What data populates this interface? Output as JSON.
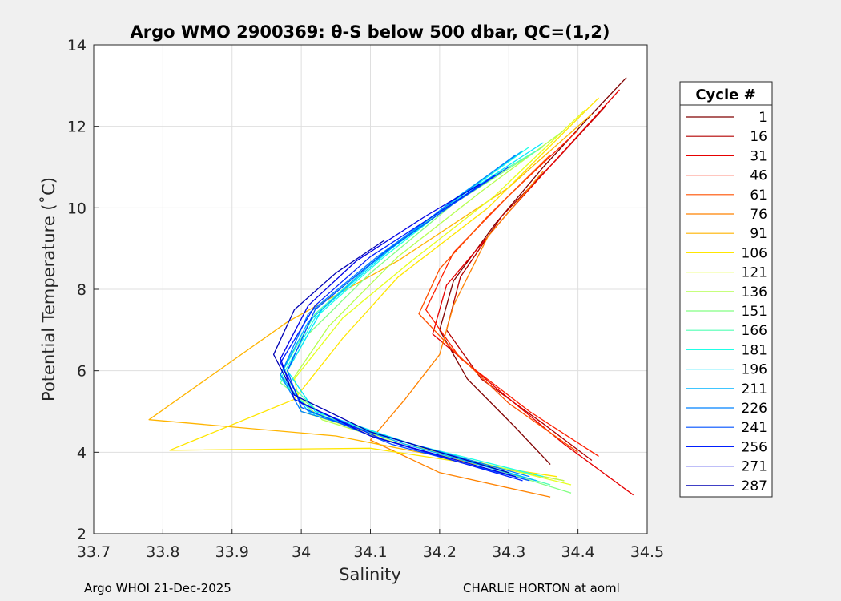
{
  "chart_data": {
    "type": "line",
    "title": "Argo WMO 2900369: θ-S below 500 dbar,  QC=(1,2)",
    "xlabel": "Salinity",
    "ylabel": "Potential Temperature (˚C)",
    "xlim": [
      33.7,
      34.5
    ],
    "ylim": [
      2,
      14
    ],
    "xticks": [
      33.7,
      33.8,
      33.9,
      34,
      34.1,
      34.2,
      34.3,
      34.4,
      34.5
    ],
    "xtick_labels": [
      "33.7",
      "33.8",
      "33.9",
      "34",
      "34.1",
      "34.2",
      "34.3",
      "34.4",
      "34.5"
    ],
    "yticks": [
      2,
      4,
      6,
      8,
      10,
      12,
      14
    ],
    "ytick_labels": [
      "2",
      "4",
      "6",
      "8",
      "10",
      "12",
      "14"
    ],
    "grid": true,
    "legend": {
      "title": "Cycle #",
      "placement": "right-outside",
      "entries": [
        {
          "label": "1",
          "color": "#800000"
        },
        {
          "label": "16",
          "color": "#b40000"
        },
        {
          "label": "31",
          "color": "#e60000"
        },
        {
          "label": "46",
          "color": "#ff1e00"
        },
        {
          "label": "61",
          "color": "#ff5000"
        },
        {
          "label": "76",
          "color": "#ff8200"
        },
        {
          "label": "91",
          "color": "#ffb400"
        },
        {
          "label": "106",
          "color": "#ffe600"
        },
        {
          "label": "121",
          "color": "#e6ff1e"
        },
        {
          "label": "136",
          "color": "#b4ff50"
        },
        {
          "label": "151",
          "color": "#82ff82"
        },
        {
          "label": "166",
          "color": "#50ffb4"
        },
        {
          "label": "181",
          "color": "#1effe6"
        },
        {
          "label": "196",
          "color": "#00e6ff"
        },
        {
          "label": "211",
          "color": "#00b4ff"
        },
        {
          "label": "226",
          "color": "#0082ff"
        },
        {
          "label": "241",
          "color": "#0050ff"
        },
        {
          "label": "256",
          "color": "#001eff"
        },
        {
          "label": "271",
          "color": "#0000e6"
        },
        {
          "label": "287",
          "color": "#0000b4"
        }
      ]
    },
    "series": [
      {
        "name": "1",
        "color": "#800000",
        "points": [
          [
            34.36,
            3.7
          ],
          [
            34.31,
            4.6
          ],
          [
            34.24,
            5.8
          ],
          [
            34.2,
            7.0
          ],
          [
            34.22,
            8.2
          ],
          [
            34.28,
            9.6
          ],
          [
            34.35,
            11.0
          ],
          [
            34.42,
            12.3
          ],
          [
            34.47,
            13.2
          ]
        ]
      },
      {
        "name": "16",
        "color": "#b40000",
        "points": [
          [
            34.42,
            3.8
          ],
          [
            34.35,
            4.7
          ],
          [
            34.26,
            5.8
          ],
          [
            34.21,
            7.0
          ],
          [
            34.23,
            8.3
          ],
          [
            34.29,
            9.8
          ],
          [
            34.37,
            11.2
          ],
          [
            34.44,
            12.5
          ]
        ]
      },
      {
        "name": "31",
        "color": "#e60000",
        "points": [
          [
            34.48,
            2.95
          ],
          [
            34.38,
            4.2
          ],
          [
            34.28,
            5.6
          ],
          [
            34.19,
            6.9
          ],
          [
            34.21,
            8.1
          ],
          [
            34.3,
            9.9
          ],
          [
            34.38,
            11.4
          ],
          [
            34.46,
            12.9
          ]
        ]
      },
      {
        "name": "46",
        "color": "#ff1e00",
        "points": [
          [
            34.43,
            3.9
          ],
          [
            34.33,
            5.0
          ],
          [
            34.23,
            6.3
          ],
          [
            34.18,
            7.5
          ],
          [
            34.22,
            8.9
          ],
          [
            34.3,
            10.3
          ],
          [
            34.4,
            11.9
          ]
        ]
      },
      {
        "name": "61",
        "color": "#ff5000",
        "points": [
          [
            34.4,
            4.0
          ],
          [
            34.3,
            5.2
          ],
          [
            34.22,
            6.5
          ],
          [
            34.17,
            7.4
          ],
          [
            34.2,
            8.5
          ],
          [
            34.27,
            9.8
          ],
          [
            34.36,
            11.3
          ]
        ]
      },
      {
        "name": "76",
        "color": "#ff8200",
        "points": [
          [
            34.36,
            2.9
          ],
          [
            34.2,
            3.5
          ],
          [
            34.1,
            4.3
          ],
          [
            34.15,
            5.3
          ],
          [
            34.2,
            6.4
          ],
          [
            34.22,
            7.6
          ],
          [
            34.27,
            9.3
          ],
          [
            34.35,
            10.9
          ]
        ]
      },
      {
        "name": "91",
        "color": "#ffb400",
        "points": [
          [
            34.38,
            3.3
          ],
          [
            34.2,
            3.9
          ],
          [
            34.05,
            4.4
          ],
          [
            33.78,
            4.8
          ],
          [
            33.98,
            7.2
          ],
          [
            34.14,
            8.7
          ],
          [
            34.3,
            10.5
          ],
          [
            34.42,
            12.3
          ]
        ]
      },
      {
        "name": "106",
        "color": "#ffe600",
        "points": [
          [
            34.37,
            3.4
          ],
          [
            34.1,
            4.1
          ],
          [
            33.81,
            4.05
          ],
          [
            33.99,
            5.3
          ],
          [
            34.06,
            6.8
          ],
          [
            34.14,
            8.3
          ],
          [
            34.27,
            10.0
          ],
          [
            34.43,
            12.7
          ]
        ]
      },
      {
        "name": "121",
        "color": "#e6ff1e",
        "points": [
          [
            34.39,
            3.2
          ],
          [
            34.15,
            4.2
          ],
          [
            34.0,
            5.0
          ],
          [
            33.99,
            5.8
          ],
          [
            34.06,
            7.3
          ],
          [
            34.16,
            8.7
          ],
          [
            34.28,
            10.3
          ],
          [
            34.41,
            12.4
          ]
        ]
      },
      {
        "name": "136",
        "color": "#b4ff50",
        "points": [
          [
            34.38,
            3.3
          ],
          [
            34.18,
            4.0
          ],
          [
            34.03,
            4.8
          ],
          [
            33.98,
            5.6
          ],
          [
            34.04,
            7.1
          ],
          [
            34.14,
            8.8
          ],
          [
            34.26,
            10.4
          ],
          [
            34.38,
            11.9
          ]
        ]
      },
      {
        "name": "151",
        "color": "#82ff82",
        "points": [
          [
            34.39,
            3.0
          ],
          [
            34.2,
            4.0
          ],
          [
            34.04,
            4.8
          ],
          [
            33.97,
            5.7
          ],
          [
            34.01,
            6.9
          ],
          [
            34.1,
            8.4
          ],
          [
            34.22,
            10.1
          ],
          [
            34.35,
            11.5
          ]
        ]
      },
      {
        "name": "166",
        "color": "#50ffb4",
        "points": [
          [
            34.36,
            3.2
          ],
          [
            34.18,
            4.1
          ],
          [
            34.03,
            4.9
          ],
          [
            33.97,
            5.9
          ],
          [
            34.02,
            7.4
          ],
          [
            34.12,
            8.9
          ],
          [
            34.24,
            10.4
          ],
          [
            34.34,
            11.4
          ]
        ]
      },
      {
        "name": "181",
        "color": "#1effe6",
        "points": [
          [
            34.35,
            3.4
          ],
          [
            34.16,
            4.2
          ],
          [
            34.02,
            4.9
          ],
          [
            33.97,
            5.8
          ],
          [
            34.02,
            7.3
          ],
          [
            34.12,
            8.8
          ],
          [
            34.24,
            10.4
          ],
          [
            34.33,
            11.5
          ]
        ]
      },
      {
        "name": "196",
        "color": "#00e6ff",
        "points": [
          [
            34.34,
            3.3
          ],
          [
            34.16,
            4.2
          ],
          [
            34.02,
            5.0
          ],
          [
            33.98,
            6.0
          ],
          [
            34.03,
            7.5
          ],
          [
            34.13,
            9.0
          ],
          [
            34.26,
            10.6
          ],
          [
            34.35,
            11.6
          ]
        ]
      },
      {
        "name": "211",
        "color": "#00b4ff",
        "points": [
          [
            34.34,
            3.3
          ],
          [
            34.15,
            4.2
          ],
          [
            34.01,
            5.0
          ],
          [
            33.97,
            5.9
          ],
          [
            34.01,
            7.2
          ],
          [
            34.1,
            8.6
          ],
          [
            34.22,
            10.2
          ],
          [
            34.32,
            11.4
          ]
        ]
      },
      {
        "name": "226",
        "color": "#0082ff",
        "points": [
          [
            34.33,
            3.4
          ],
          [
            34.14,
            4.3
          ],
          [
            34.0,
            5.0
          ],
          [
            33.97,
            5.9
          ],
          [
            34.01,
            7.4
          ],
          [
            34.11,
            8.8
          ],
          [
            34.23,
            10.3
          ],
          [
            34.31,
            11.3
          ]
        ]
      },
      {
        "name": "241",
        "color": "#0050ff",
        "points": [
          [
            34.33,
            3.3
          ],
          [
            34.13,
            4.2
          ],
          [
            34.0,
            5.1
          ],
          [
            33.98,
            6.0
          ],
          [
            34.02,
            7.5
          ],
          [
            34.12,
            8.9
          ],
          [
            34.22,
            10.1
          ],
          [
            34.3,
            11.0
          ]
        ]
      },
      {
        "name": "256",
        "color": "#001eff",
        "points": [
          [
            34.32,
            3.3
          ],
          [
            34.12,
            4.3
          ],
          [
            34.0,
            5.2
          ],
          [
            33.97,
            6.2
          ],
          [
            34.02,
            7.6
          ],
          [
            34.1,
            8.8
          ],
          [
            34.2,
            9.9
          ],
          [
            34.28,
            10.8
          ]
        ]
      },
      {
        "name": "271",
        "color": "#0000e6",
        "points": [
          [
            34.31,
            3.4
          ],
          [
            34.1,
            4.4
          ],
          [
            33.99,
            5.3
          ],
          [
            33.97,
            6.3
          ],
          [
            34.01,
            7.6
          ],
          [
            34.08,
            8.7
          ],
          [
            34.18,
            9.8
          ],
          [
            34.26,
            10.6
          ]
        ]
      },
      {
        "name": "287",
        "color": "#0000b4",
        "points": [
          [
            34.3,
            3.5
          ],
          [
            34.1,
            4.5
          ],
          [
            33.99,
            5.4
          ],
          [
            33.96,
            6.4
          ],
          [
            33.99,
            7.5
          ],
          [
            34.05,
            8.4
          ],
          [
            34.12,
            9.2
          ]
        ]
      }
    ]
  },
  "footer": {
    "left": "Argo WHOI 21-Dec-2025",
    "right": "CHARLIE HORTON at aoml"
  }
}
